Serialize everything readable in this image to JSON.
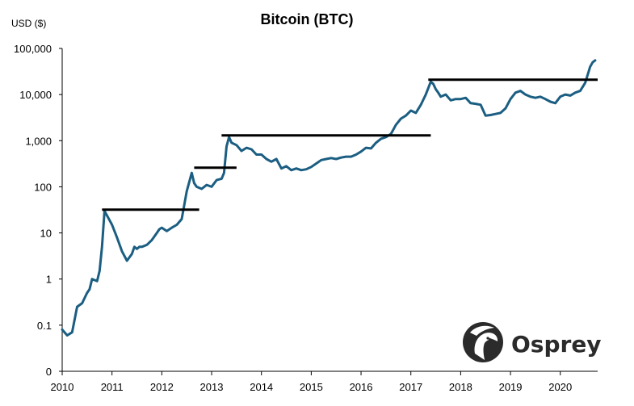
{
  "chart_data": {
    "type": "line",
    "title": "Bitcoin (BTC)",
    "ylabel": "USD ($)",
    "xlabel": "",
    "yscale": "log",
    "y_ticks": [
      {
        "value": 0.01,
        "label": "0"
      },
      {
        "value": 0.1,
        "label": "0.1"
      },
      {
        "value": 1,
        "label": "1"
      },
      {
        "value": 10,
        "label": "10"
      },
      {
        "value": 100,
        "label": "100"
      },
      {
        "value": 1000,
        "label": "1,000"
      },
      {
        "value": 10000,
        "label": "10,000"
      },
      {
        "value": 100000,
        "label": "100,000"
      }
    ],
    "x_ticks": [
      "2010",
      "2011",
      "2012",
      "2013",
      "2014",
      "2015",
      "2016",
      "2017",
      "2018",
      "2019",
      "2020"
    ],
    "xlim": [
      2010,
      2020.75
    ],
    "ylim": [
      0.01,
      100000
    ],
    "grid": false,
    "series": [
      {
        "color": "#1b5e82",
        "x": [
          2010.0,
          2010.1,
          2010.2,
          2010.3,
          2010.4,
          2010.5,
          2010.55,
          2010.6,
          2010.7,
          2010.75,
          2010.8,
          2010.85,
          2011.0,
          2011.1,
          2011.2,
          2011.3,
          2011.4,
          2011.45,
          2011.5,
          2011.55,
          2011.6,
          2011.7,
          2011.8,
          2011.9,
          2011.95,
          2012.0,
          2012.1,
          2012.2,
          2012.3,
          2012.4,
          2012.5,
          2012.6,
          2012.65,
          2012.7,
          2012.8,
          2012.9,
          2013.0,
          2013.1,
          2013.2,
          2013.25,
          2013.3,
          2013.35,
          2013.4,
          2013.5,
          2013.6,
          2013.7,
          2013.8,
          2013.9,
          2014.0,
          2014.1,
          2014.2,
          2014.3,
          2014.4,
          2014.5,
          2014.6,
          2014.7,
          2014.8,
          2014.9,
          2015.0,
          2015.1,
          2015.2,
          2015.3,
          2015.4,
          2015.5,
          2015.6,
          2015.7,
          2015.8,
          2015.9,
          2016.0,
          2016.1,
          2016.2,
          2016.3,
          2016.4,
          2016.5,
          2016.6,
          2016.7,
          2016.8,
          2016.9,
          2017.0,
          2017.1,
          2017.2,
          2017.3,
          2017.4,
          2017.45,
          2017.5,
          2017.55,
          2017.6,
          2017.7,
          2017.8,
          2017.9,
          2018.0,
          2018.1,
          2018.2,
          2018.3,
          2018.4,
          2018.5,
          2018.6,
          2018.7,
          2018.8,
          2018.9,
          2019.0,
          2019.1,
          2019.2,
          2019.3,
          2019.4,
          2019.5,
          2019.6,
          2019.7,
          2019.8,
          2019.9,
          2020.0,
          2020.1,
          2020.2,
          2020.3,
          2020.4,
          2020.5,
          2020.6,
          2020.65,
          2020.7
        ],
        "values": [
          0.08,
          0.06,
          0.07,
          0.25,
          0.3,
          0.5,
          0.6,
          1.0,
          0.9,
          1.5,
          5,
          30,
          15,
          8,
          4,
          2.5,
          3.5,
          5,
          4.5,
          5,
          5,
          5.5,
          7,
          10,
          12,
          13,
          11,
          13,
          15,
          20,
          80,
          200,
          120,
          100,
          90,
          110,
          100,
          140,
          150,
          200,
          750,
          1200,
          900,
          800,
          600,
          700,
          650,
          500,
          500,
          400,
          350,
          400,
          250,
          280,
          230,
          250,
          230,
          240,
          270,
          320,
          380,
          400,
          420,
          400,
          430,
          450,
          450,
          500,
          580,
          700,
          680,
          900,
          1100,
          1200,
          1400,
          2200,
          3000,
          3500,
          4500,
          4000,
          6000,
          10000,
          19000,
          17000,
          13000,
          11000,
          9000,
          10000,
          7500,
          8000,
          8000,
          8500,
          6500,
          6300,
          6000,
          3500,
          3600,
          3800,
          4000,
          5000,
          8000,
          11000,
          12000,
          10000,
          9000,
          8500,
          9000,
          8000,
          7000,
          6500,
          9000,
          10000,
          9500,
          11000,
          12000,
          18000,
          40000,
          50000,
          55000
        ]
      }
    ],
    "resistance_lines": [
      {
        "x0": 2010.8,
        "x1": 2012.75,
        "value": 32
      },
      {
        "x0": 2012.65,
        "x1": 2013.5,
        "value": 260
      },
      {
        "x0": 2013.2,
        "x1": 2017.4,
        "value": 1300
      },
      {
        "x0": 2017.35,
        "x1": 2020.75,
        "value": 21000
      }
    ]
  },
  "logo": {
    "name": "Osprey",
    "icon": "osprey-bird-icon"
  },
  "colors": {
    "line": "#1b5e82",
    "resistance": "#000000",
    "logo": "#2b2b2b"
  }
}
